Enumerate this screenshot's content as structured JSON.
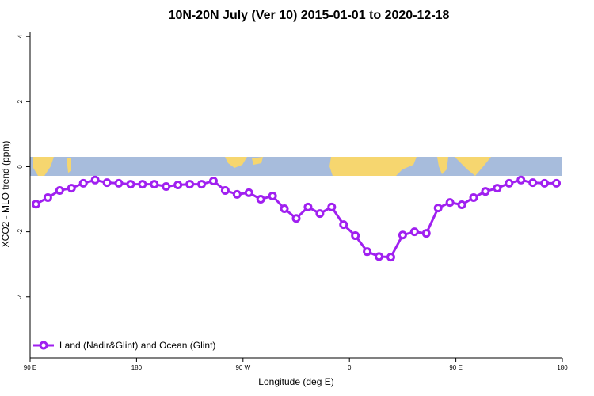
{
  "chart_data": {
    "type": "line",
    "title": "10N-20N July (Ver 10)   2015-01-01 to 2020-12-18",
    "x_label": "Longitude (deg E)",
    "y_label": "XCO2 - MLO trend (ppm)",
    "x": [
      95,
      105,
      115,
      125,
      135,
      145,
      155,
      165,
      175,
      185,
      195,
      205,
      215,
      225,
      235,
      245,
      255,
      265,
      275,
      285,
      295,
      305,
      315,
      325,
      335,
      345,
      355,
      365,
      375,
      385,
      395,
      405,
      415,
      425,
      435,
      445,
      455,
      465,
      475,
      485,
      495,
      505,
      515,
      525,
      535
    ],
    "series": [
      {
        "name": "Land (Nadir&Glint) and Ocean (Glint)",
        "color": "#a020f0",
        "values": [
          -1.15,
          -0.95,
          -0.73,
          -0.66,
          -0.51,
          -0.41,
          -0.49,
          -0.51,
          -0.54,
          -0.54,
          -0.54,
          -0.61,
          -0.56,
          -0.54,
          -0.54,
          -0.44,
          -0.73,
          -0.85,
          -0.8,
          -1.0,
          -0.9,
          -1.29,
          -1.59,
          -1.24,
          -1.44,
          -1.24,
          -1.78,
          -2.12,
          -2.61,
          -2.76,
          -2.78,
          -2.1,
          -2.0,
          -2.05,
          -1.27,
          -1.1,
          -1.17,
          -0.95,
          -0.76,
          -0.66,
          -0.51,
          -0.41,
          -0.49,
          -0.51,
          -0.51
        ]
      }
    ],
    "xlim": [
      90,
      540
    ],
    "xticks": [
      {
        "value": 90,
        "label": "90 E"
      },
      180,
      {
        "value": 270,
        "label": "90 W"
      },
      {
        "value": 360,
        "label": "0"
      },
      {
        "value": 450,
        "label": "90 E"
      },
      {
        "value": 540,
        "label": "180"
      }
    ],
    "ylim": [
      -5.88,
      4.15
    ],
    "yticks": [
      -4,
      -2,
      0,
      2,
      4
    ],
    "legend": "bottom-left"
  }
}
